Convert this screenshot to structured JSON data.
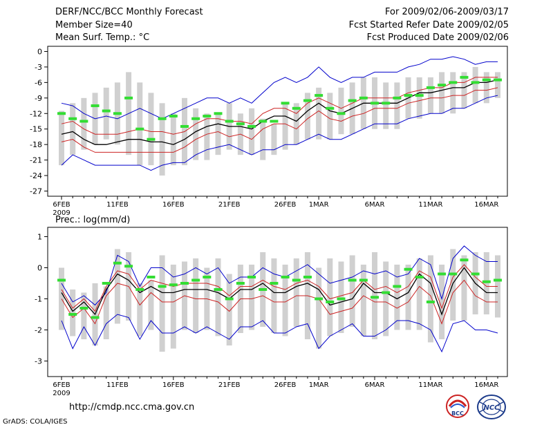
{
  "header": {
    "title": "DERF/NCC/BCC Monthly Forecast",
    "member_size": "Member Size=40",
    "variable1": "Mean Surf. Temp.: °C",
    "period": "For 2009/02/06-2009/03/17",
    "refer_date": "Fcst Started Refer Date 2009/02/05",
    "produced_date": "Fcst Produced Date 2009/02/06"
  },
  "footer": {
    "url": "http://cmdp.ncc.cma.gov.cn",
    "grads": "GrADS: COLA/IGES",
    "logo1_text": "BCC",
    "logo2_text": "NCC"
  },
  "colors": {
    "ensemble_bar": "#d0d0d0",
    "observed": "#33dd33",
    "mean": "#000000",
    "inner_band": "#cc2222",
    "outer_band": "#0000cc"
  },
  "chart_data": [
    {
      "type": "line",
      "panel": "temperature",
      "title": "Mean Surf. Temp.: °C",
      "ylabel": "°C",
      "ylim": [
        -28,
        1
      ],
      "yticks": [
        0,
        -3,
        -6,
        -9,
        -12,
        -15,
        -18,
        -21,
        -24,
        -27
      ],
      "x_day_range": [
        0,
        39
      ],
      "xticks": [
        {
          "day": 0,
          "label": "6FEB"
        },
        {
          "day": 5,
          "label": "11FEB"
        },
        {
          "day": 10,
          "label": "16FEB"
        },
        {
          "day": 15,
          "label": "21FEB"
        },
        {
          "day": 20,
          "label": "26FEB"
        },
        {
          "day": 23,
          "label": "1MAR"
        },
        {
          "day": 28,
          "label": "6MAR"
        },
        {
          "day": 33,
          "label": "11MAR"
        },
        {
          "day": 38,
          "label": "16MAR"
        }
      ],
      "year_label": "2009",
      "series": [
        {
          "name": "ensemble_max",
          "values": [
            -11.5,
            -10,
            -9,
            -8,
            -7,
            -6,
            -4,
            -6,
            -8,
            -10,
            -12,
            -9,
            -11,
            -12,
            -12,
            -10,
            -12,
            -11,
            -13,
            -14,
            -10,
            -10,
            -8,
            -7,
            -8,
            -7,
            -6,
            -5,
            -5,
            -6,
            -6,
            -5,
            -5,
            -5,
            -4,
            -4,
            -4,
            -3,
            -4,
            -4
          ]
        },
        {
          "name": "ensemble_min",
          "values": [
            -22,
            -20,
            -19,
            -18,
            -17,
            -18,
            -20,
            -22,
            -22,
            -24,
            -22,
            -22,
            -21,
            -21,
            -20,
            -19,
            -20,
            -20,
            -21,
            -20,
            -19,
            -18,
            -17,
            -17,
            -17,
            -16,
            -16,
            -15,
            -15,
            -15,
            -15,
            -13,
            -13,
            -12,
            -12,
            -12,
            -11,
            -10,
            -10,
            -9
          ]
        },
        {
          "name": "outer_upper",
          "values": [
            -10,
            -10.5,
            -12,
            -13,
            -12.5,
            -13,
            -12,
            -11,
            -12,
            -13,
            -12,
            -11,
            -10,
            -9,
            -9,
            -10,
            -9,
            -10,
            -8,
            -6,
            -5,
            -6,
            -5,
            -3,
            -5,
            -6,
            -5,
            -5,
            -4,
            -4,
            -4,
            -3,
            -2.5,
            -1.5,
            -1.5,
            -1,
            -1.5,
            -2.5,
            -2,
            -2
          ]
        },
        {
          "name": "inner_upper",
          "values": [
            -14,
            -13.5,
            -15,
            -16,
            -16,
            -16,
            -15.5,
            -15,
            -15.5,
            -15.5,
            -16,
            -15.5,
            -14,
            -13,
            -13,
            -13.5,
            -13.5,
            -14,
            -12,
            -11,
            -11,
            -12,
            -10,
            -9,
            -10,
            -11,
            -10,
            -9,
            -9,
            -9,
            -9,
            -8,
            -7.5,
            -7,
            -7,
            -6,
            -6,
            -5,
            -5,
            -5
          ]
        },
        {
          "name": "ensemble_mean",
          "values": [
            -16,
            -15.5,
            -17,
            -18,
            -18,
            -17.5,
            -17,
            -17,
            -17.5,
            -17.5,
            -18,
            -17,
            -15.5,
            -14.5,
            -14,
            -14.5,
            -14.5,
            -15,
            -13.5,
            -12.5,
            -12.5,
            -13.5,
            -11.5,
            -10,
            -11.5,
            -12,
            -11,
            -10,
            -10,
            -10,
            -10,
            -9,
            -8,
            -8,
            -7.5,
            -7,
            -7,
            -6,
            -6,
            -5.5
          ]
        },
        {
          "name": "inner_lower",
          "values": [
            -17.5,
            -17,
            -18.5,
            -19.5,
            -19.5,
            -19.5,
            -19.5,
            -19.5,
            -19.5,
            -19.5,
            -19.5,
            -18.5,
            -17,
            -16,
            -15.5,
            -16.5,
            -16,
            -17,
            -15,
            -14,
            -14,
            -15,
            -13,
            -11.5,
            -13,
            -13.5,
            -12.5,
            -12,
            -11,
            -11,
            -11,
            -10,
            -9.5,
            -9,
            -9,
            -8.5,
            -8.5,
            -7.5,
            -7.5,
            -7
          ]
        },
        {
          "name": "outer_lower",
          "values": [
            -22,
            -20,
            -21,
            -22,
            -22,
            -22,
            -22,
            -22,
            -23,
            -22,
            -21.5,
            -21.5,
            -20,
            -19,
            -18.5,
            -18,
            -19,
            -20,
            -19,
            -19,
            -18,
            -18,
            -17,
            -16,
            -17,
            -17,
            -16,
            -15,
            -14,
            -14,
            -14,
            -13,
            -12.5,
            -12,
            -12,
            -11,
            -11,
            -10,
            -9,
            -8.5
          ]
        },
        {
          "name": "observed",
          "values": [
            -12,
            -13,
            -13.5,
            -10.5,
            -11.5,
            -12,
            -9,
            -15,
            -17,
            -13,
            -12.5,
            -14.5,
            -13,
            -12.5,
            -12,
            -13.5,
            -14,
            -14.5,
            -13.5,
            -13.5,
            -10,
            -11,
            -9.5,
            -8.5,
            -11,
            -12,
            -9.5,
            -9,
            -10,
            -10,
            -9,
            -8.5,
            -8.5,
            -7,
            -6.5,
            -6,
            -5,
            -6,
            -5.5,
            -5.5
          ]
        }
      ]
    },
    {
      "type": "line",
      "panel": "precipitation",
      "title": "Prec.: log(mm/d)",
      "ylabel": "log(mm/d)",
      "ylim": [
        -3.5,
        1.3
      ],
      "yticks": [
        1,
        0,
        -1,
        -2,
        -3
      ],
      "x_day_range": [
        0,
        39
      ],
      "xticks": [
        {
          "day": 0,
          "label": "6FEB"
        },
        {
          "day": 5,
          "label": "11FEB"
        },
        {
          "day": 10,
          "label": "16FEB"
        },
        {
          "day": 15,
          "label": "21FEB"
        },
        {
          "day": 20,
          "label": "26FEB"
        },
        {
          "day": 23,
          "label": "1MAR"
        },
        {
          "day": 28,
          "label": "6MAR"
        },
        {
          "day": 33,
          "label": "11MAR"
        },
        {
          "day": 38,
          "label": "16MAR"
        }
      ],
      "year_label": "2009",
      "series": [
        {
          "name": "ensemble_max",
          "values": [
            0,
            -0.7,
            -0.8,
            -0.5,
            -0.6,
            0.6,
            0.5,
            -0.5,
            -0.4,
            0.4,
            0.1,
            0.2,
            0.3,
            0,
            0.3,
            -0.2,
            0.1,
            0.1,
            0.5,
            0.3,
            0.1,
            0.3,
            0.5,
            0,
            0.3,
            0.2,
            0.4,
            0.1,
            0.5,
            0.2,
            0.1,
            0.1,
            0.3,
            0.4,
            0.1,
            0.6,
            0.4,
            0.5,
            0.5,
            0.4
          ]
        },
        {
          "name": "ensemble_min",
          "values": [
            -2,
            -2.2,
            -2.3,
            -2.5,
            -2.3,
            -1.8,
            -1.7,
            -2.2,
            -2,
            -2.7,
            -2.6,
            -2,
            -2.1,
            -2,
            -2.2,
            -2.5,
            -2.1,
            -2,
            -1.9,
            -2.1,
            -2.2,
            -1.9,
            -2.3,
            -2.6,
            -2.2,
            -2.1,
            -1.9,
            -2.2,
            -2.3,
            -2.2,
            -2,
            -2,
            -2,
            -2.4,
            -2.3,
            -1.7,
            -1.7,
            -1.5,
            -1.5,
            -1.6
          ]
        },
        {
          "name": "outer_upper",
          "values": [
            -0.5,
            -1.1,
            -0.9,
            -1.2,
            -0.8,
            0.4,
            0.2,
            -0.6,
            0,
            0,
            -0.3,
            -0.2,
            0,
            -0.2,
            0,
            -0.5,
            -0.3,
            -0.3,
            0,
            -0.2,
            -0.3,
            -0.1,
            0.1,
            -0.2,
            -0.5,
            -0.4,
            -0.3,
            -0.1,
            -0.2,
            -0.1,
            -0.3,
            -0.2,
            0.3,
            0.1,
            -1,
            0.3,
            0.7,
            0.4,
            0.2,
            0.2
          ]
        },
        {
          "name": "inner_upper",
          "values": [
            -0.7,
            -1.3,
            -1,
            -1.4,
            -0.6,
            -0.1,
            -0.2,
            -0.7,
            -0.4,
            -0.5,
            -0.6,
            -0.5,
            -0.5,
            -0.5,
            -0.6,
            -0.9,
            -0.6,
            -0.6,
            -0.4,
            -0.6,
            -0.7,
            -0.5,
            -0.4,
            -0.6,
            -1,
            -0.9,
            -0.8,
            -0.4,
            -0.7,
            -0.6,
            -0.8,
            -0.6,
            -0.1,
            -0.3,
            -1.3,
            -0.3,
            0.1,
            -0.3,
            -0.6,
            -0.6
          ]
        },
        {
          "name": "ensemble_mean",
          "values": [
            -0.8,
            -1.4,
            -1.1,
            -1.5,
            -0.7,
            -0.2,
            -0.4,
            -0.8,
            -0.6,
            -0.8,
            -0.8,
            -0.7,
            -0.7,
            -0.7,
            -0.8,
            -1,
            -0.7,
            -0.7,
            -0.5,
            -0.8,
            -0.8,
            -0.6,
            -0.5,
            -0.7,
            -1.2,
            -1.1,
            -1,
            -0.5,
            -0.8,
            -0.8,
            -1,
            -0.8,
            -0.2,
            -0.5,
            -1.5,
            -0.5,
            0,
            -0.5,
            -0.8,
            -0.8
          ]
        },
        {
          "name": "inner_lower",
          "values": [
            -1,
            -1.6,
            -1.3,
            -1.8,
            -0.9,
            -0.5,
            -0.6,
            -1.2,
            -0.8,
            -1.1,
            -1.1,
            -0.9,
            -1,
            -1,
            -1.1,
            -1.4,
            -1,
            -1,
            -0.9,
            -1.1,
            -1.1,
            -0.9,
            -0.9,
            -1,
            -1.5,
            -1.4,
            -1.3,
            -0.9,
            -1.1,
            -1.1,
            -1.3,
            -1.1,
            -0.6,
            -0.9,
            -1.8,
            -0.8,
            -0.4,
            -0.9,
            -1.1,
            -1.1
          ]
        },
        {
          "name": "outer_lower",
          "values": [
            -1.7,
            -2.6,
            -1.9,
            -2.5,
            -1.8,
            -1.5,
            -1.6,
            -2.3,
            -1.7,
            -2.1,
            -2.1,
            -1.9,
            -2.1,
            -1.9,
            -2.1,
            -2.3,
            -1.9,
            -1.9,
            -1.7,
            -2.1,
            -2.1,
            -1.9,
            -1.8,
            -2.6,
            -2.2,
            -2,
            -1.8,
            -2.2,
            -2.2,
            -2,
            -1.7,
            -1.7,
            -1.8,
            -2,
            -2.7,
            -1.8,
            -1.7,
            -2,
            -2,
            -2.1
          ]
        },
        {
          "name": "observed",
          "values": [
            -0.4,
            -1.5,
            -1.3,
            -1.6,
            -0.5,
            0.15,
            0.05,
            -0.7,
            -0.3,
            -0.6,
            -0.55,
            -0.5,
            -0.4,
            -0.3,
            -0.7,
            -1,
            -0.5,
            -0.3,
            -0.7,
            -0.5,
            -0.3,
            -0.4,
            -0.3,
            -1,
            -1.1,
            -1,
            -0.4,
            -0.4,
            -0.95,
            -0.8,
            -0.6,
            -0.05,
            -0.3,
            -1.1,
            -0.2,
            -0.2,
            0.25,
            -0.2,
            -0.45,
            -0.4
          ]
        }
      ]
    }
  ]
}
